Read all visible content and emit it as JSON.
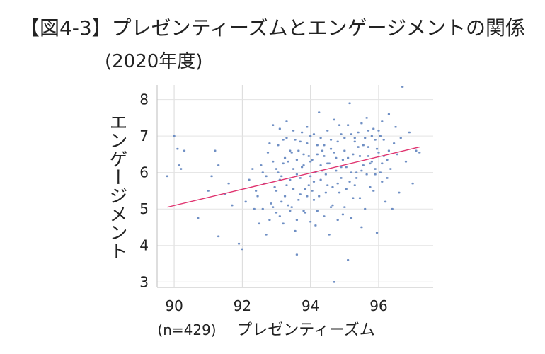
{
  "chart_data": {
    "type": "scatter",
    "title": "【図4-3】プレゼンティーズムとエンゲージメントの関係",
    "subtitle": "(2020年度)",
    "xlabel": "プレゼンティーズム",
    "ylabel": "エンゲージメント",
    "sample_label": "(n=429)",
    "xlim": [
      89.5,
      97.6
    ],
    "ylim": [
      2.85,
      8.4
    ],
    "xticks": [
      90,
      92,
      94,
      96
    ],
    "yticks": [
      3,
      4,
      5,
      6,
      7,
      8
    ],
    "grid": true,
    "point_color": "#6f8fc4",
    "trendline": {
      "color": "#e0336f",
      "points": [
        [
          89.8,
          5.05
        ],
        [
          97.2,
          6.7
        ]
      ]
    },
    "points": [
      [
        89.8,
        5.9
      ],
      [
        90.0,
        7.0
      ],
      [
        90.1,
        6.65
      ],
      [
        90.15,
        6.2
      ],
      [
        90.2,
        6.1
      ],
      [
        90.3,
        6.6
      ],
      [
        90.7,
        4.75
      ],
      [
        91.0,
        5.5
      ],
      [
        91.1,
        5.9
      ],
      [
        91.2,
        6.6
      ],
      [
        91.3,
        6.2
      ],
      [
        91.3,
        4.25
      ],
      [
        91.5,
        5.4
      ],
      [
        91.6,
        5.7
      ],
      [
        91.7,
        5.1
      ],
      [
        91.9,
        4.05
      ],
      [
        92.0,
        3.9
      ],
      [
        92.1,
        5.2
      ],
      [
        92.2,
        5.8
      ],
      [
        92.3,
        6.1
      ],
      [
        92.4,
        5.5
      ],
      [
        92.5,
        4.6
      ],
      [
        92.6,
        5.0
      ],
      [
        92.7,
        4.3
      ],
      [
        92.8,
        4.7
      ],
      [
        92.8,
        6.8
      ],
      [
        92.9,
        7.3
      ],
      [
        92.9,
        6.3
      ],
      [
        93.0,
        5.5
      ],
      [
        93.05,
        6.0
      ],
      [
        93.1,
        4.8
      ],
      [
        93.15,
        5.2
      ],
      [
        93.2,
        6.9
      ],
      [
        93.25,
        6.4
      ],
      [
        93.3,
        7.4
      ],
      [
        93.35,
        5.1
      ],
      [
        93.4,
        5.8
      ],
      [
        93.45,
        6.55
      ],
      [
        93.5,
        6.1
      ],
      [
        93.55,
        4.4
      ],
      [
        93.6,
        3.75
      ],
      [
        93.6,
        5.95
      ],
      [
        93.65,
        6.6
      ],
      [
        93.7,
        5.4
      ],
      [
        93.75,
        7.1
      ],
      [
        93.8,
        6.2
      ],
      [
        93.85,
        4.9
      ],
      [
        93.9,
        6.8
      ],
      [
        93.95,
        5.65
      ],
      [
        94.0,
        5.9
      ],
      [
        94.0,
        7.0
      ],
      [
        94.05,
        6.35
      ],
      [
        94.1,
        5.25
      ],
      [
        94.15,
        4.55
      ],
      [
        94.2,
        6.5
      ],
      [
        94.25,
        7.65
      ],
      [
        94.3,
        5.8
      ],
      [
        94.35,
        6.05
      ],
      [
        94.4,
        6.75
      ],
      [
        94.45,
        5.45
      ],
      [
        94.5,
        6.25
      ],
      [
        94.55,
        4.3
      ],
      [
        94.6,
        6.9
      ],
      [
        94.65,
        5.1
      ],
      [
        94.7,
        3.0
      ],
      [
        94.75,
        6.4
      ],
      [
        94.8,
        5.7
      ],
      [
        94.85,
        7.3
      ],
      [
        94.9,
        6.15
      ],
      [
        94.95,
        4.85
      ],
      [
        95.0,
        6.6
      ],
      [
        95.05,
        5.55
      ],
      [
        95.1,
        3.6
      ],
      [
        95.15,
        7.9
      ],
      [
        95.2,
        6.0
      ],
      [
        95.25,
        5.3
      ],
      [
        95.3,
        6.85
      ],
      [
        95.35,
        5.85
      ],
      [
        95.4,
        7.1
      ],
      [
        95.45,
        6.45
      ],
      [
        95.5,
        4.5
      ],
      [
        95.55,
        6.2
      ],
      [
        95.6,
        5.0
      ],
      [
        95.65,
        7.5
      ],
      [
        95.7,
        6.7
      ],
      [
        95.75,
        5.6
      ],
      [
        95.8,
        6.3
      ],
      [
        95.85,
        7.2
      ],
      [
        95.9,
        5.95
      ],
      [
        95.95,
        4.35
      ],
      [
        96.0,
        6.55
      ],
      [
        96.05,
        7.0
      ],
      [
        96.1,
        5.75
      ],
      [
        96.15,
        6.9
      ],
      [
        96.2,
        5.2
      ],
      [
        96.25,
        6.35
      ],
      [
        96.3,
        7.6
      ],
      [
        96.35,
        6.1
      ],
      [
        96.4,
        5.0
      ],
      [
        96.45,
        6.8
      ],
      [
        96.5,
        7.25
      ],
      [
        96.55,
        6.5
      ],
      [
        96.6,
        5.45
      ],
      [
        96.65,
        6.95
      ],
      [
        96.7,
        8.35
      ],
      [
        96.8,
        6.3
      ],
      [
        96.9,
        7.1
      ],
      [
        97.0,
        5.7
      ],
      [
        97.1,
        6.6
      ],
      [
        97.2,
        6.55
      ],
      [
        92.35,
        5.0
      ],
      [
        92.45,
        5.35
      ],
      [
        92.55,
        6.2
      ],
      [
        92.65,
        5.7
      ],
      [
        92.75,
        6.55
      ],
      [
        92.85,
        5.15
      ],
      [
        92.95,
        5.6
      ],
      [
        93.05,
        6.75
      ],
      [
        93.15,
        5.9
      ],
      [
        93.25,
        5.35
      ],
      [
        93.35,
        6.3
      ],
      [
        93.45,
        5.05
      ],
      [
        93.55,
        6.9
      ],
      [
        93.65,
        5.25
      ],
      [
        93.75,
        6.15
      ],
      [
        93.85,
        5.55
      ],
      [
        93.95,
        6.45
      ],
      [
        94.05,
        5.5
      ],
      [
        94.15,
        6.0
      ],
      [
        94.25,
        5.35
      ],
      [
        94.35,
        6.6
      ],
      [
        94.45,
        5.95
      ],
      [
        94.55,
        6.25
      ],
      [
        94.65,
        5.6
      ],
      [
        94.75,
        6.05
      ],
      [
        94.85,
        5.45
      ],
      [
        94.95,
        6.35
      ],
      [
        95.05,
        6.15
      ],
      [
        95.15,
        5.75
      ],
      [
        95.25,
        6.5
      ],
      [
        95.35,
        6.0
      ],
      [
        95.45,
        5.3
      ],
      [
        95.55,
        6.75
      ],
      [
        95.65,
        5.95
      ],
      [
        95.75,
        6.25
      ],
      [
        95.85,
        5.5
      ],
      [
        95.95,
        6.65
      ],
      [
        96.05,
        6.0
      ],
      [
        96.15,
        6.45
      ],
      [
        96.25,
        5.85
      ],
      [
        93.0,
        4.9
      ],
      [
        93.2,
        4.6
      ],
      [
        93.4,
        4.95
      ],
      [
        93.6,
        4.7
      ],
      [
        93.8,
        4.95
      ],
      [
        94.0,
        4.65
      ],
      [
        94.2,
        4.95
      ],
      [
        94.4,
        4.8
      ],
      [
        94.6,
        5.05
      ],
      [
        94.8,
        4.7
      ],
      [
        95.0,
        5.05
      ],
      [
        95.2,
        4.75
      ],
      [
        92.9,
        5.05
      ],
      [
        93.1,
        5.8
      ],
      [
        93.3,
        5.65
      ],
      [
        93.5,
        5.55
      ],
      [
        93.7,
        5.85
      ],
      [
        93.9,
        5.35
      ],
      [
        94.1,
        5.75
      ],
      [
        94.3,
        6.2
      ],
      [
        94.5,
        5.65
      ],
      [
        94.7,
        6.55
      ],
      [
        94.9,
        5.85
      ],
      [
        95.1,
        6.4
      ],
      [
        95.3,
        5.65
      ],
      [
        95.5,
        6.05
      ],
      [
        95.7,
        6.45
      ],
      [
        95.9,
        6.1
      ],
      [
        96.1,
        6.25
      ],
      [
        96.3,
        6.6
      ],
      [
        93.0,
        6.1
      ],
      [
        93.2,
        6.25
      ],
      [
        93.4,
        6.6
      ],
      [
        93.6,
        6.35
      ],
      [
        93.8,
        6.5
      ],
      [
        94.0,
        6.3
      ],
      [
        94.2,
        6.75
      ],
      [
        94.4,
        6.45
      ],
      [
        94.6,
        6.65
      ],
      [
        94.8,
        6.85
      ],
      [
        95.0,
        6.95
      ],
      [
        95.2,
        7.05
      ],
      [
        95.4,
        6.7
      ],
      [
        95.6,
        6.95
      ],
      [
        95.8,
        7.0
      ],
      [
        96.0,
        7.15
      ],
      [
        92.6,
        6.0
      ],
      [
        92.7,
        5.9
      ],
      [
        93.1,
        7.2
      ],
      [
        93.3,
        6.95
      ],
      [
        93.5,
        7.15
      ],
      [
        93.7,
        6.85
      ],
      [
        93.9,
        7.25
      ],
      [
        94.1,
        7.05
      ],
      [
        94.3,
        6.95
      ],
      [
        94.5,
        7.15
      ],
      [
        94.7,
        7.45
      ],
      [
        94.9,
        7.05
      ],
      [
        95.1,
        7.3
      ],
      [
        95.3,
        6.95
      ],
      [
        95.5,
        7.35
      ],
      [
        95.7,
        7.15
      ],
      [
        95.9,
        6.9
      ],
      [
        96.1,
        7.4
      ]
    ]
  }
}
